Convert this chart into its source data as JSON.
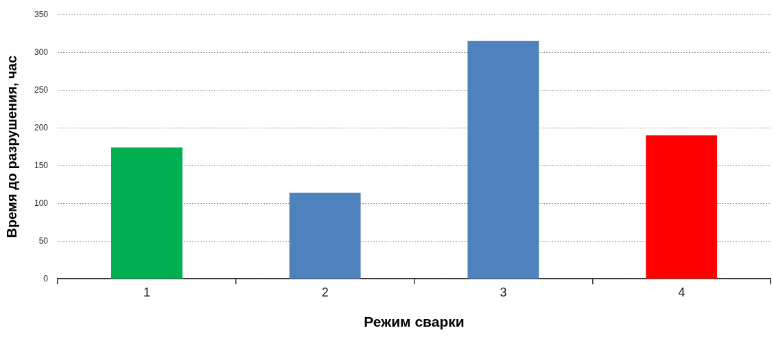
{
  "chart_data": {
    "type": "bar",
    "xlabel": "Режим сварки",
    "ylabel": "Время до разрушения, час",
    "categories": [
      "1",
      "2",
      "3",
      "4"
    ],
    "values": [
      174,
      114,
      315,
      190
    ],
    "colors": [
      "#00b050",
      "#4f81bd",
      "#4f81bd",
      "#ff0000"
    ],
    "ylim": [
      0,
      350
    ],
    "yticks": [
      0,
      50,
      100,
      150,
      200,
      250,
      300,
      350
    ],
    "grid": "y",
    "legend": false
  }
}
